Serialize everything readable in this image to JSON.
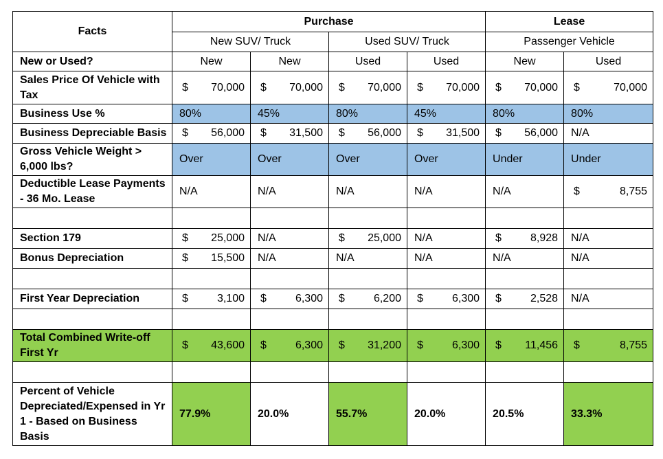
{
  "headers": {
    "facts": "Facts",
    "purchase": "Purchase",
    "lease": "Lease",
    "groups": [
      "New SUV/ Truck",
      "Used SUV/ Truck",
      "Passenger Vehicle"
    ]
  },
  "rows": {
    "new_or_used": {
      "label": "New or Used?",
      "values": [
        "New",
        "New",
        "Used",
        "Used",
        "New",
        "Used"
      ]
    },
    "sales_price": {
      "label": "Sales Price Of Vehicle with Tax",
      "values": [
        "70,000",
        "70,000",
        "70,000",
        "70,000",
        "70,000",
        "70,000"
      ]
    },
    "business_use": {
      "label": "Business Use %",
      "values": [
        "80%",
        "45%",
        "80%",
        "45%",
        "80%",
        "80%"
      ]
    },
    "depreciable_basis": {
      "label": "Business Depreciable Basis",
      "values": [
        "56,000",
        "31,500",
        "56,000",
        "31,500",
        "56,000"
      ],
      "last": "N/A"
    },
    "gvw": {
      "label": "Gross Vehicle Weight > 6,000 lbs?",
      "values": [
        "Over",
        "Over",
        "Over",
        "Over",
        "Under",
        "Under"
      ]
    },
    "lease_payments": {
      "label": "Deductible Lease Payments - 36 Mo. Lease",
      "values": [
        "N/A",
        "N/A",
        "N/A",
        "N/A",
        "N/A"
      ],
      "last": "8,755"
    },
    "section179": {
      "label": "Section 179",
      "c1": "25,000",
      "c2": "N/A",
      "c3": "25,000",
      "c4": "N/A",
      "c5": "8,928",
      "c6": "N/A"
    },
    "bonus": {
      "label": "Bonus Depreciation",
      "c1": "15,500",
      "c2": "N/A",
      "c3": "N/A",
      "c4": "N/A",
      "c5": "N/A",
      "c6": "N/A"
    },
    "first_year": {
      "label": "First Year Depreciation",
      "values": [
        "3,100",
        "6,300",
        "6,200",
        "6,300",
        "2,528"
      ],
      "last": "N/A"
    },
    "total": {
      "label": "Total Combined Write-off First Yr",
      "values": [
        "43,600",
        "6,300",
        "31,200",
        "6,300",
        "11,456",
        "8,755"
      ]
    },
    "percent": {
      "label": "Percent of Vehicle Depreciated/Expensed in Yr 1 - Based on Business Basis",
      "values": [
        "77.9%",
        "20.0%",
        "55.7%",
        "20.0%",
        "20.5%",
        "33.3%"
      ]
    }
  },
  "currency_symbol": "$",
  "colors": {
    "blue_fill": "#9dc3e6",
    "green_fill": "#92d050"
  }
}
